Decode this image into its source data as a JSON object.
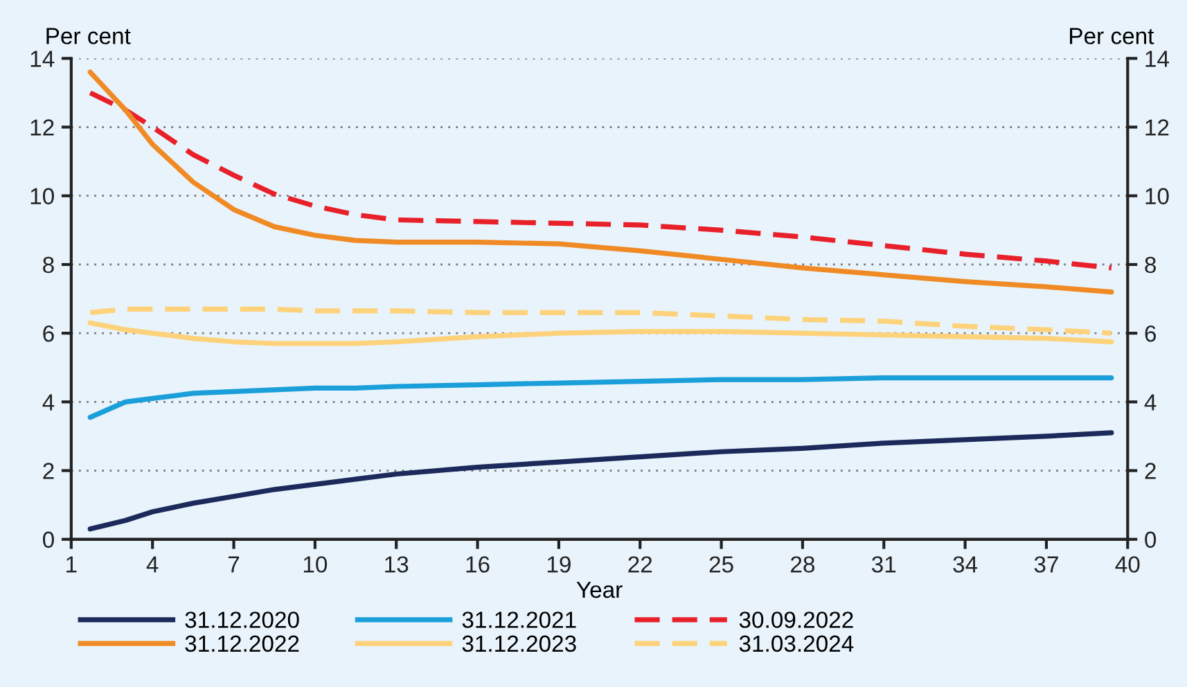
{
  "chart_data": {
    "type": "line",
    "xlabel": "Year",
    "ylabel": "Per cent",
    "y2label": "Per cent",
    "xlim": [
      1,
      40
    ],
    "xticks": [
      1,
      4,
      7,
      10,
      13,
      16,
      19,
      22,
      25,
      28,
      31,
      34,
      37,
      40
    ],
    "ylim": [
      0,
      14
    ],
    "yticks": [
      0,
      2,
      4,
      6,
      8,
      10,
      12,
      14
    ],
    "y2lim": [
      0,
      14
    ],
    "y2ticks": [
      0,
      2,
      4,
      6,
      8,
      10,
      12,
      14
    ],
    "grid": "y",
    "legend": "bottom",
    "x": [
      1.7,
      3,
      4,
      5.5,
      7,
      8.5,
      10,
      11.5,
      13,
      16,
      19,
      22,
      25,
      28,
      31,
      34,
      37,
      39.4
    ],
    "series": [
      {
        "name": "31.12.2020",
        "color": "#1b2a5a",
        "line_style": "solid",
        "values": [
          0.3,
          0.55,
          0.8,
          1.05,
          1.25,
          1.45,
          1.6,
          1.75,
          1.9,
          2.1,
          2.25,
          2.4,
          2.55,
          2.65,
          2.8,
          2.9,
          3.0,
          3.1
        ]
      },
      {
        "name": "31.12.2021",
        "color": "#1a9fda",
        "line_style": "solid",
        "values": [
          3.55,
          4.0,
          4.1,
          4.25,
          4.3,
          4.35,
          4.4,
          4.4,
          4.45,
          4.5,
          4.55,
          4.6,
          4.65,
          4.65,
          4.7,
          4.7,
          4.7,
          4.7
        ]
      },
      {
        "name": "30.09.2022",
        "color": "#e8202a",
        "line_style": "dashed",
        "values": [
          13.0,
          12.5,
          12.0,
          11.2,
          10.6,
          10.05,
          9.7,
          9.45,
          9.3,
          9.25,
          9.2,
          9.15,
          9.0,
          8.8,
          8.55,
          8.3,
          8.1,
          7.9
        ]
      },
      {
        "name": "31.12.2022",
        "color": "#f08a24",
        "line_style": "solid",
        "values": [
          13.6,
          12.5,
          11.5,
          10.4,
          9.6,
          9.1,
          8.85,
          8.7,
          8.65,
          8.65,
          8.6,
          8.4,
          8.15,
          7.9,
          7.7,
          7.5,
          7.35,
          7.2
        ]
      },
      {
        "name": "31.12.2023",
        "color": "#fdd27a",
        "line_style": "solid",
        "values": [
          6.3,
          6.1,
          6.0,
          5.85,
          5.75,
          5.7,
          5.7,
          5.7,
          5.75,
          5.9,
          6.0,
          6.05,
          6.05,
          6.0,
          5.95,
          5.9,
          5.85,
          5.75
        ]
      },
      {
        "name": "31.03.2024",
        "color": "#fdd27a",
        "line_style": "dashed",
        "values": [
          6.6,
          6.7,
          6.7,
          6.7,
          6.7,
          6.7,
          6.65,
          6.65,
          6.65,
          6.6,
          6.6,
          6.6,
          6.5,
          6.4,
          6.35,
          6.2,
          6.1,
          6.0
        ]
      }
    ]
  }
}
